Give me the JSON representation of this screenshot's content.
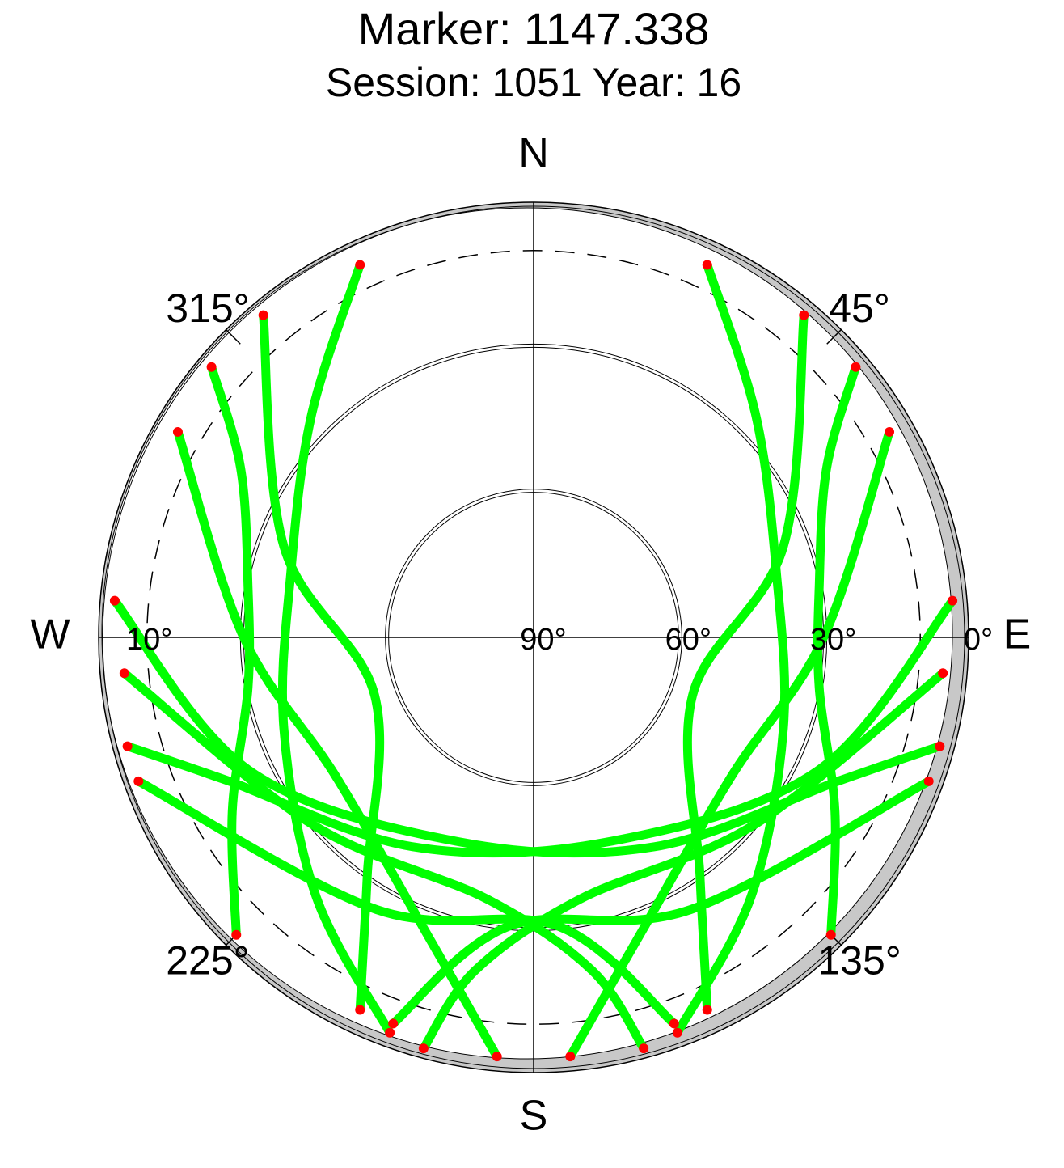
{
  "chart_data": {
    "type": "skyplot",
    "title": "Marker: 1147.338",
    "subtitle": "Session: 1051 Year: 16",
    "rlim": [
      90,
      0
    ],
    "rticks": [
      {
        "value": 0,
        "label": "0°"
      },
      {
        "value": 30,
        "label": "30°"
      },
      {
        "value": 60,
        "label": "60°"
      },
      {
        "value": 90,
        "label": "90°"
      }
    ],
    "rticks_west": [
      {
        "value": 10,
        "label": "10°"
      }
    ],
    "azticks": [
      {
        "value": 45,
        "label": "45°"
      },
      {
        "value": 135,
        "label": "135°"
      },
      {
        "value": 225,
        "label": "225°"
      },
      {
        "value": 315,
        "label": "315°"
      }
    ],
    "directions": [
      {
        "value": 0,
        "label": "N"
      },
      {
        "value": 90,
        "label": "E"
      },
      {
        "value": 180,
        "label": "S"
      },
      {
        "value": 270,
        "label": "W"
      }
    ],
    "color": "#00ff00",
    "end_color": "#ff0000",
    "series": [
      {
        "az": [
          25,
          45,
          75,
          110,
          140,
          160
        ],
        "el": [
          5,
          25,
          38,
          35,
          20,
          3
        ]
      },
      {
        "az": [
          335,
          315,
          285,
          250,
          220,
          200
        ],
        "el": [
          5,
          25,
          38,
          35,
          20,
          3
        ]
      },
      {
        "az": [
          275,
          245,
          200,
          150,
          115,
          105
        ],
        "el": [
          3,
          25,
          45,
          40,
          20,
          3
        ]
      },
      {
        "az": [
          85,
          115,
          160,
          210,
          245,
          255
        ],
        "el": [
          3,
          25,
          45,
          40,
          20,
          3
        ]
      },
      {
        "az": [
          300,
          270,
          235,
          200,
          185
        ],
        "el": [
          5,
          30,
          40,
          25,
          3
        ]
      },
      {
        "az": [
          60,
          90,
          125,
          160,
          175
        ],
        "el": [
          5,
          30,
          40,
          25,
          3
        ]
      },
      {
        "az": [
          265,
          230,
          190,
          170,
          165
        ],
        "el": [
          5,
          30,
          35,
          20,
          2
        ]
      },
      {
        "az": [
          95,
          130,
          170,
          190,
          195
        ],
        "el": [
          5,
          30,
          35,
          20,
          2
        ]
      },
      {
        "az": [
          320,
          290,
          250,
          215,
          205
        ],
        "el": [
          3,
          35,
          55,
          30,
          5
        ]
      },
      {
        "az": [
          40,
          70,
          110,
          145,
          155
        ],
        "el": [
          3,
          35,
          55,
          30,
          5
        ]
      },
      {
        "az": [
          250,
          210,
          175,
          160
        ],
        "el": [
          3,
          25,
          30,
          5
        ]
      },
      {
        "az": [
          110,
          150,
          185,
          200
        ],
        "el": [
          3,
          25,
          30,
          5
        ]
      },
      {
        "az": [
          310,
          300,
          280,
          260,
          240,
          225
        ],
        "el": [
          3,
          20,
          30,
          30,
          18,
          3
        ]
      },
      {
        "az": [
          50,
          60,
          80,
          100,
          120,
          135
        ],
        "el": [
          3,
          20,
          30,
          30,
          18,
          3
        ]
      }
    ]
  }
}
